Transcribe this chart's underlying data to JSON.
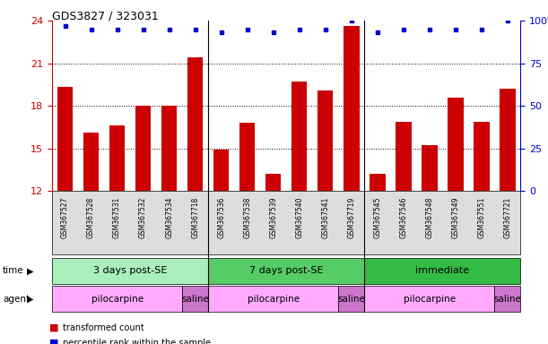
{
  "title": "GDS3827 / 323031",
  "samples": [
    "GSM367527",
    "GSM367528",
    "GSM367531",
    "GSM367532",
    "GSM367534",
    "GSM367718",
    "GSM367536",
    "GSM367538",
    "GSM367539",
    "GSM367540",
    "GSM367541",
    "GSM367719",
    "GSM367545",
    "GSM367546",
    "GSM367548",
    "GSM367549",
    "GSM367551",
    "GSM367721"
  ],
  "bar_values": [
    19.3,
    16.1,
    16.6,
    18.0,
    18.0,
    21.4,
    14.9,
    16.8,
    13.2,
    19.7,
    19.1,
    23.6,
    13.2,
    16.9,
    15.2,
    18.6,
    16.9,
    19.2
  ],
  "percentile_values": [
    97,
    95,
    95,
    95,
    95,
    95,
    93,
    95,
    93,
    95,
    95,
    100,
    93,
    95,
    95,
    95,
    95,
    100
  ],
  "bar_color": "#cc0000",
  "dot_color": "#0000cc",
  "ylim_left": [
    12,
    24
  ],
  "ylim_right": [
    0,
    100
  ],
  "yticks_left": [
    12,
    15,
    18,
    21,
    24
  ],
  "yticks_right": [
    0,
    25,
    50,
    75,
    100
  ],
  "yticklabels_right": [
    "0",
    "25",
    "50",
    "75",
    "100%"
  ],
  "time_groups": [
    {
      "label": "3 days post-SE",
      "start": 0,
      "end": 5,
      "color": "#aaeebb"
    },
    {
      "label": "7 days post-SE",
      "start": 6,
      "end": 11,
      "color": "#55cc66"
    },
    {
      "label": "immediate",
      "start": 12,
      "end": 17,
      "color": "#33bb44"
    }
  ],
  "agent_groups": [
    {
      "label": "pilocarpine",
      "start": 0,
      "end": 4,
      "color": "#ffaaff"
    },
    {
      "label": "saline",
      "start": 5,
      "end": 5,
      "color": "#cc77cc"
    },
    {
      "label": "pilocarpine",
      "start": 6,
      "end": 10,
      "color": "#ffaaff"
    },
    {
      "label": "saline",
      "start": 11,
      "end": 11,
      "color": "#cc77cc"
    },
    {
      "label": "pilocarpine",
      "start": 12,
      "end": 16,
      "color": "#ffaaff"
    },
    {
      "label": "saline",
      "start": 17,
      "end": 17,
      "color": "#cc77cc"
    }
  ],
  "legend_bar_color": "#cc0000",
  "legend_dot_color": "#0000cc",
  "legend_bar_label": "transformed count",
  "legend_dot_label": "percentile rank within the sample",
  "bg_color": "#ffffff",
  "left_axis_color": "#cc0000",
  "right_axis_color": "#0000cc",
  "sample_bg_color": "#dddddd"
}
